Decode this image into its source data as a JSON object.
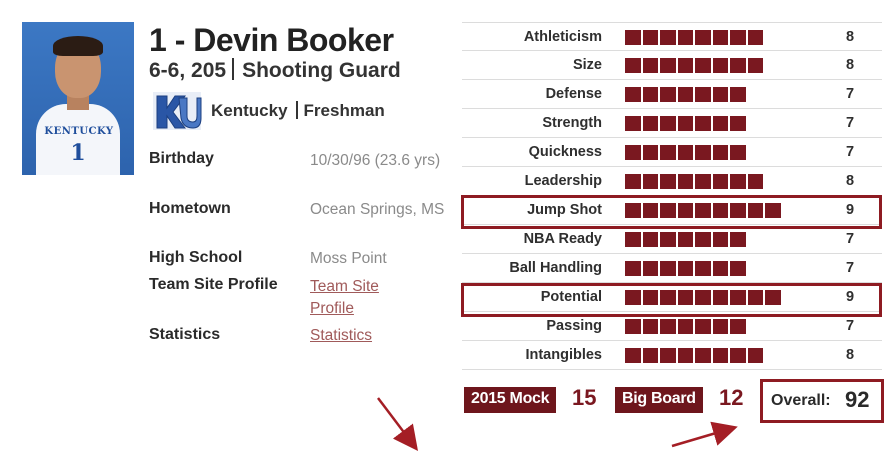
{
  "player": {
    "name": "1 - Devin Booker",
    "height_weight": "6-6, 205",
    "position": "Shooting Guard",
    "school": "Kentucky",
    "class": "Freshman",
    "jersey_text": "KENTUCKY",
    "jersey_number": "1"
  },
  "info": [
    {
      "label": "Birthday",
      "value": "10/30/96 (23.6 yrs)",
      "link": false
    },
    {
      "label": "Hometown",
      "value": "Ocean Springs, MS",
      "link": false
    },
    {
      "label": "High School",
      "value": "Moss Point",
      "link": false
    },
    {
      "label": "Team Site Profile",
      "value": "Team Site Profile",
      "link": true
    },
    {
      "label": "Statistics",
      "value": "Statistics",
      "link": true
    }
  ],
  "ratings": [
    {
      "label": "Athleticism",
      "value": 8
    },
    {
      "label": "Size",
      "value": 8
    },
    {
      "label": "Defense",
      "value": 7
    },
    {
      "label": "Strength",
      "value": 7
    },
    {
      "label": "Quickness",
      "value": 7
    },
    {
      "label": "Leadership",
      "value": 8
    },
    {
      "label": "Jump Shot",
      "value": 9
    },
    {
      "label": "NBA Ready",
      "value": 7
    },
    {
      "label": "Ball Handling",
      "value": 7
    },
    {
      "label": "Potential",
      "value": 9
    },
    {
      "label": "Passing",
      "value": 7
    },
    {
      "label": "Intangibles",
      "value": 8
    }
  ],
  "highlighted_ratings": [
    "Jump Shot",
    "Potential"
  ],
  "stats": {
    "mock_label": "2015 Mock",
    "mock_value": "15",
    "board_label": "Big Board",
    "board_value": "12",
    "overall_label": "Overall:",
    "overall_value": "92"
  },
  "colors": {
    "bar": "#7a1820",
    "badge": "#6e161c",
    "highlight": "#8e1b22",
    "link": "#a05a5a"
  },
  "icons": {
    "school_logo": "kentucky-uk-logo-icon",
    "arrows": "annotation-arrow-icon"
  }
}
